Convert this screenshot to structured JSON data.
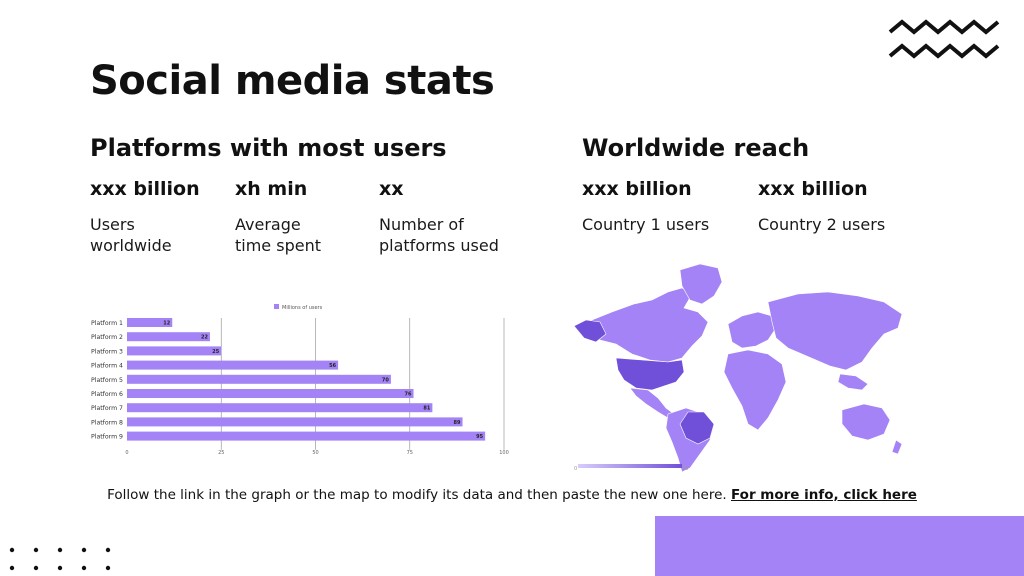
{
  "slide": {
    "title": "Social media stats",
    "accent_color": "#a383f5",
    "text_color": "#111111"
  },
  "platforms": {
    "heading": "Platforms with most users",
    "stats": [
      {
        "value": "xxx billion",
        "label": "Users\nworldwide"
      },
      {
        "value": "xh min",
        "label": "Average\ntime spent"
      },
      {
        "value": "xx",
        "label": "Number of\nplatforms used"
      }
    ]
  },
  "reach": {
    "heading": "Worldwide reach",
    "stats": [
      {
        "value": "xxx billion",
        "label": "Country 1 users"
      },
      {
        "value": "xxx billion",
        "label": "Country 2 users"
      }
    ]
  },
  "chart_data": {
    "type": "bar",
    "orientation": "horizontal",
    "categories": [
      "Platform 1",
      "Platform 2",
      "Platform 3",
      "Platform 4",
      "Platform 5",
      "Platform 6",
      "Platform 7",
      "Platform 8",
      "Platform 9"
    ],
    "series": [
      {
        "name": "Millions of users",
        "values": [
          12,
          22,
          25,
          56,
          70,
          76,
          81,
          89,
          95
        ],
        "color": "#a383f5"
      }
    ],
    "xlim": [
      0,
      100
    ],
    "ticks": [
      0,
      25,
      50,
      75,
      100
    ],
    "legend": "top",
    "grid": true
  },
  "map": {
    "base_color": "#a383f5",
    "highlight_color": "#7050d8",
    "legend_min": "0",
    "legend_max": "10"
  },
  "footer": {
    "text": "Follow the link in the graph or the map to modify its data and then paste the new one here.",
    "link": "For more info, click here"
  },
  "decor": {
    "zigzag_icon": "zigzag-lines-icon",
    "dots_icon": "dot-grid-icon"
  }
}
